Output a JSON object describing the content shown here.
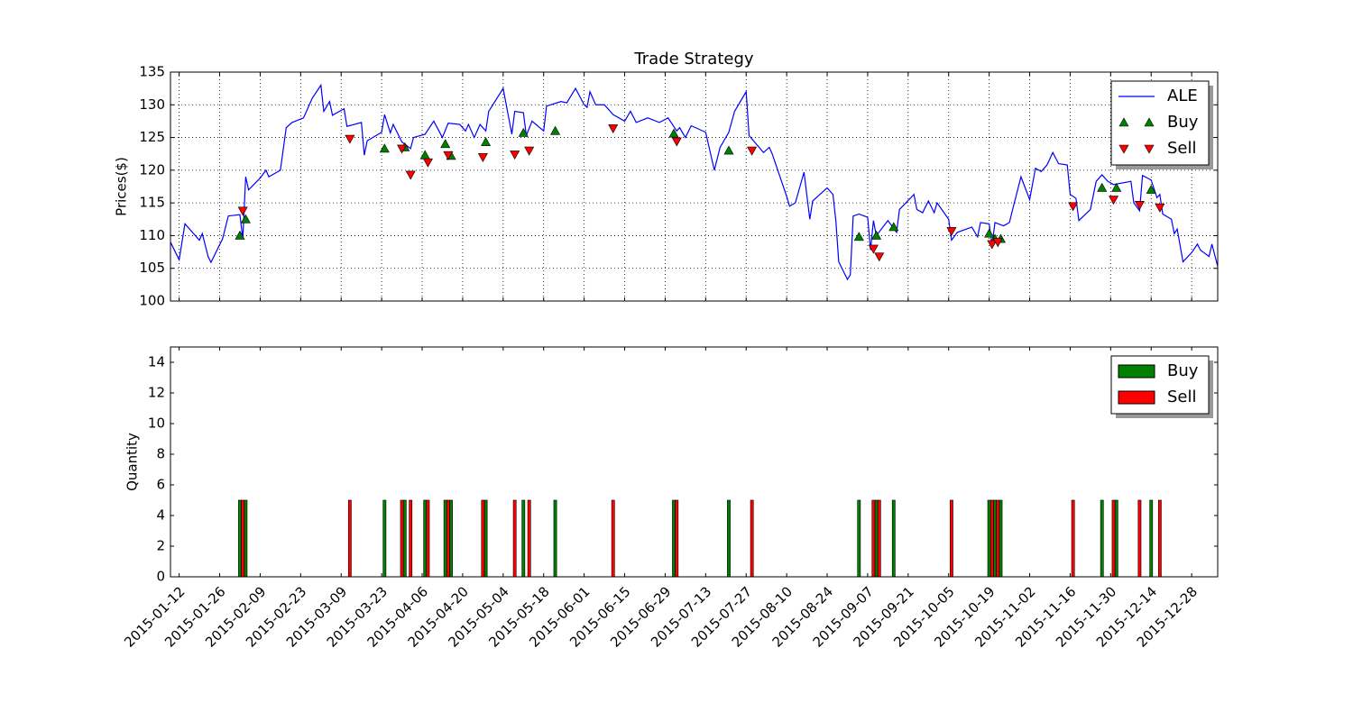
{
  "chart_data": [
    {
      "type": "line",
      "title": "Trade Strategy",
      "ylabel": "Prices($)",
      "xlim": [
        "2015-01-09",
        "2016-01-06"
      ],
      "ylim": [
        100,
        135
      ],
      "yticks": [
        100,
        105,
        110,
        115,
        120,
        125,
        130,
        135
      ],
      "xticks": [
        "2015-01-12",
        "2015-01-26",
        "2015-02-09",
        "2015-02-23",
        "2015-03-09",
        "2015-03-23",
        "2015-04-06",
        "2015-04-20",
        "2015-05-04",
        "2015-05-18",
        "2015-06-01",
        "2015-06-15",
        "2015-06-29",
        "2015-07-13",
        "2015-07-27",
        "2015-08-10",
        "2015-08-24",
        "2015-09-07",
        "2015-09-21",
        "2015-10-05",
        "2015-10-19",
        "2015-11-02",
        "2015-11-16",
        "2015-11-30",
        "2015-12-14",
        "2015-12-28"
      ],
      "show_xtick_labels": false,
      "grid": true,
      "legend": "upper right",
      "series": [
        {
          "name": "ALE",
          "color": "#0000ff",
          "x": [
            "2015-01-09",
            "2015-01-12",
            "2015-01-14",
            "2015-01-19",
            "2015-01-20",
            "2015-01-22",
            "2015-01-23",
            "2015-01-27",
            "2015-01-29",
            "2015-02-02",
            "2015-02-03",
            "2015-02-04",
            "2015-02-05",
            "2015-02-09",
            "2015-02-11",
            "2015-02-12",
            "2015-02-16",
            "2015-02-18",
            "2015-02-20",
            "2015-02-24",
            "2015-02-27",
            "2015-03-02",
            "2015-03-03",
            "2015-03-05",
            "2015-03-06",
            "2015-03-10",
            "2015-03-11",
            "2015-03-16",
            "2015-03-17",
            "2015-03-18",
            "2015-03-23",
            "2015-03-24",
            "2015-03-26",
            "2015-03-27",
            "2015-03-30",
            "2015-04-02",
            "2015-04-03",
            "2015-04-07",
            "2015-04-10",
            "2015-04-13",
            "2015-04-15",
            "2015-04-19",
            "2015-04-21",
            "2015-04-22",
            "2015-04-24",
            "2015-04-26",
            "2015-04-28",
            "2015-04-29",
            "2015-05-04",
            "2015-05-07",
            "2015-05-08",
            "2015-05-11",
            "2015-05-12",
            "2015-05-14",
            "2015-05-18",
            "2015-05-19",
            "2015-05-24",
            "2015-05-26",
            "2015-05-29",
            "2015-06-01",
            "2015-06-02",
            "2015-06-03",
            "2015-06-05",
            "2015-06-08",
            "2015-06-11",
            "2015-06-15",
            "2015-06-17",
            "2015-06-19",
            "2015-06-23",
            "2015-06-27",
            "2015-06-30",
            "2015-07-03",
            "2015-07-04",
            "2015-07-06",
            "2015-07-08",
            "2015-07-13",
            "2015-07-16",
            "2015-07-18",
            "2015-07-21",
            "2015-07-23",
            "2015-07-27",
            "2015-07-28",
            "2015-08-02",
            "2015-08-04",
            "2015-08-05",
            "2015-08-10",
            "2015-08-11",
            "2015-08-13",
            "2015-08-16",
            "2015-08-18",
            "2015-08-19",
            "2015-08-24",
            "2015-08-26",
            "2015-08-27",
            "2015-08-28",
            "2015-08-31",
            "2015-09-01",
            "2015-09-02",
            "2015-09-04",
            "2015-09-07",
            "2015-09-08",
            "2015-09-09",
            "2015-09-10",
            "2015-09-14",
            "2015-09-17",
            "2015-09-18",
            "2015-09-23",
            "2015-09-24",
            "2015-09-26",
            "2015-09-28",
            "2015-09-30",
            "2015-10-01",
            "2015-10-05",
            "2015-10-06",
            "2015-10-08",
            "2015-10-13",
            "2015-10-15",
            "2015-10-16",
            "2015-10-19",
            "2015-10-20",
            "2015-10-21",
            "2015-10-24",
            "2015-10-26",
            "2015-10-27",
            "2015-10-30",
            "2015-11-02",
            "2015-11-04",
            "2015-11-06",
            "2015-11-08",
            "2015-11-10",
            "2015-11-12",
            "2015-11-15",
            "2015-11-16",
            "2015-11-18",
            "2015-11-19",
            "2015-11-23",
            "2015-11-25",
            "2015-11-27",
            "2015-11-29",
            "2015-12-01",
            "2015-12-07",
            "2015-12-08",
            "2015-12-10",
            "2015-12-11",
            "2015-12-14",
            "2015-12-16",
            "2015-12-17",
            "2015-12-18",
            "2015-12-21",
            "2015-12-22",
            "2015-12-23",
            "2015-12-25",
            "2015-12-28",
            "2015-12-30",
            "2015-12-31",
            "2016-01-03",
            "2016-01-04",
            "2016-01-06"
          ],
          "values": [
            109,
            106.3,
            111.8,
            109.3,
            110.3,
            106.8,
            105.9,
            109.5,
            113,
            113.2,
            109.5,
            119,
            117,
            118.8,
            120,
            119,
            120,
            126.5,
            127.3,
            128,
            131,
            133,
            129,
            130.5,
            128.4,
            129.4,
            126.7,
            127.3,
            122.3,
            124.5,
            125.8,
            128.5,
            125.7,
            127,
            124.3,
            123.3,
            125,
            125.5,
            127.5,
            125,
            127.2,
            127,
            126,
            127,
            125,
            127,
            126,
            129,
            132.5,
            125.5,
            129,
            128.8,
            125.3,
            127.5,
            126,
            129.8,
            130.5,
            130.3,
            132.5,
            130,
            129.6,
            132,
            130,
            130,
            128.5,
            127.5,
            129,
            127.3,
            128,
            127.3,
            128,
            126,
            126.5,
            125,
            126.8,
            125.8,
            120,
            123.5,
            125.8,
            129,
            132,
            125.3,
            122.7,
            123.5,
            122.5,
            116,
            114.5,
            115,
            119.7,
            112.5,
            115.3,
            117.3,
            116.3,
            112.3,
            106,
            103.3,
            104,
            113,
            113.3,
            112.8,
            107.8,
            112.3,
            110,
            112.3,
            110.5,
            114,
            116.3,
            114,
            113.5,
            115.3,
            113.5,
            115,
            112.5,
            109.3,
            110.5,
            111.3,
            109.8,
            112,
            111.8,
            108.5,
            112,
            111.5,
            112,
            113.8,
            119,
            115.5,
            120.3,
            119.8,
            120.8,
            122.7,
            121,
            120.8,
            116.3,
            115.7,
            112.3,
            114,
            118.3,
            119.3,
            118.3,
            117.8,
            118.3,
            115,
            113.8,
            119.2,
            118.5,
            115.8,
            116.3,
            113.3,
            112.5,
            110.3,
            111,
            106,
            107.4,
            108.7,
            107.8,
            106.8,
            108.7,
            105.3
          ]
        },
        {
          "name": "Buy",
          "color": "#008000",
          "marker": "^",
          "x": [
            "2015-02-02",
            "2015-02-04",
            "2015-03-24",
            "2015-03-31",
            "2015-04-07",
            "2015-04-14",
            "2015-04-16",
            "2015-04-28",
            "2015-05-11",
            "2015-05-22",
            "2015-07-02",
            "2015-07-21",
            "2015-09-04",
            "2015-09-10",
            "2015-09-16",
            "2015-10-19",
            "2015-10-21",
            "2015-10-23",
            "2015-11-27",
            "2015-12-02",
            "2015-12-14"
          ],
          "values": [
            110,
            112.5,
            123.3,
            123.5,
            122.3,
            124,
            122.2,
            124.3,
            125.7,
            126,
            125.6,
            123,
            109.8,
            110,
            111.3,
            110.3,
            109.5,
            109.5,
            117.3,
            117.3,
            117
          ]
        },
        {
          "name": "Sell",
          "color": "#ff0000",
          "marker": "v",
          "x": [
            "2015-02-03",
            "2015-03-12",
            "2015-03-30",
            "2015-04-02",
            "2015-04-08",
            "2015-04-15",
            "2015-04-27",
            "2015-05-08",
            "2015-05-13",
            "2015-06-11",
            "2015-07-03",
            "2015-07-29",
            "2015-09-09",
            "2015-09-11",
            "2015-10-06",
            "2015-10-20",
            "2015-10-22",
            "2015-11-17",
            "2015-12-01",
            "2015-12-10",
            "2015-12-17"
          ],
          "values": [
            113.8,
            124.8,
            123.3,
            119.3,
            121.2,
            122.3,
            122,
            122.4,
            123,
            126.4,
            124.4,
            123,
            108,
            106.8,
            110.7,
            108.7,
            109,
            114.5,
            115.5,
            114.7,
            114.3
          ]
        }
      ]
    },
    {
      "type": "bar",
      "ylabel": "Quantity",
      "xlim": [
        "2015-01-09",
        "2016-01-06"
      ],
      "ylim": [
        0,
        15
      ],
      "yticks": [
        0,
        2,
        4,
        6,
        8,
        10,
        12,
        14
      ],
      "xticks": [
        "2015-01-12",
        "2015-01-26",
        "2015-02-09",
        "2015-02-23",
        "2015-03-09",
        "2015-03-23",
        "2015-04-06",
        "2015-04-20",
        "2015-05-04",
        "2015-05-18",
        "2015-06-01",
        "2015-06-15",
        "2015-06-29",
        "2015-07-13",
        "2015-07-27",
        "2015-08-10",
        "2015-08-24",
        "2015-09-07",
        "2015-09-21",
        "2015-10-05",
        "2015-10-19",
        "2015-11-02",
        "2015-11-16",
        "2015-11-30",
        "2015-12-14",
        "2015-12-28"
      ],
      "grid": false,
      "legend": "upper right",
      "series": [
        {
          "name": "Buy",
          "color": "#008000",
          "x": [
            "2015-02-02",
            "2015-02-04",
            "2015-03-24",
            "2015-03-31",
            "2015-04-07",
            "2015-04-14",
            "2015-04-16",
            "2015-04-28",
            "2015-05-11",
            "2015-05-22",
            "2015-07-02",
            "2015-07-21",
            "2015-09-04",
            "2015-09-10",
            "2015-09-16",
            "2015-10-19",
            "2015-10-21",
            "2015-10-23",
            "2015-11-27",
            "2015-12-02",
            "2015-12-14"
          ],
          "values": [
            5,
            5,
            5,
            5,
            5,
            5,
            5,
            5,
            5,
            5,
            5,
            5,
            5,
            5,
            5,
            5,
            5,
            5,
            5,
            5,
            5
          ]
        },
        {
          "name": "Sell",
          "color": "#ff0000",
          "x": [
            "2015-02-03",
            "2015-03-12",
            "2015-03-30",
            "2015-04-02",
            "2015-04-08",
            "2015-04-15",
            "2015-04-27",
            "2015-05-08",
            "2015-05-13",
            "2015-06-11",
            "2015-07-03",
            "2015-07-29",
            "2015-09-09",
            "2015-09-11",
            "2015-10-06",
            "2015-10-20",
            "2015-10-22",
            "2015-11-17",
            "2015-12-01",
            "2015-12-10",
            "2015-12-17"
          ],
          "values": [
            5,
            5,
            5,
            5,
            5,
            5,
            5,
            5,
            5,
            5,
            5,
            5,
            5,
            5,
            5,
            5,
            5,
            5,
            5,
            5,
            5
          ]
        }
      ]
    }
  ]
}
